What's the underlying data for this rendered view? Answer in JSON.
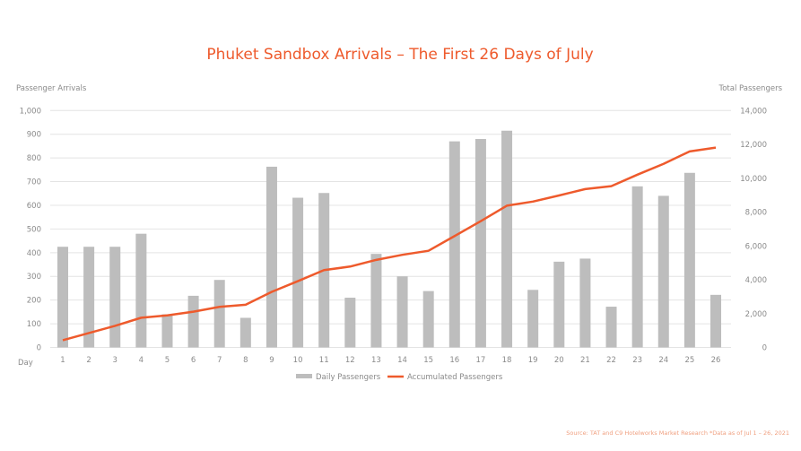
{
  "chart_data": {
    "type": "bar+line",
    "title": "Phuket Sandbox Arrivals – The First 26 Days of July",
    "ylabel_left": "Passenger Arrivals",
    "ylabel_right": "Total Passengers",
    "xlabel": "Day",
    "ylim_left": [
      0,
      1000
    ],
    "ylim_right": [
      0,
      14000
    ],
    "yticks_left": [
      "0",
      "100",
      "200",
      "300",
      "400",
      "500",
      "600",
      "700",
      "800",
      "900",
      "1,000"
    ],
    "yticks_right": [
      "0",
      "2,000",
      "4,000",
      "6,000",
      "8,000",
      "10,000",
      "12,000",
      "14,000"
    ],
    "grid": true,
    "legend_position": "bottom",
    "categories": [
      "1",
      "2",
      "3",
      "4",
      "5",
      "6",
      "7",
      "8",
      "9",
      "10",
      "11",
      "12",
      "13",
      "14",
      "15",
      "16",
      "17",
      "18",
      "19",
      "20",
      "21",
      "22",
      "23",
      "24",
      "25",
      "26"
    ],
    "series": [
      {
        "name": "Daily Passengers",
        "type": "bar",
        "axis": "left",
        "color": "#bdbdbd",
        "values": [
          425,
          425,
          425,
          480,
          140,
          218,
          285,
          125,
          763,
          632,
          652,
          210,
          395,
          300,
          238,
          870,
          880,
          915,
          243,
          362,
          375,
          172,
          680,
          640,
          737,
          222
        ]
      },
      {
        "name": "Accumulated Passengers",
        "type": "line",
        "axis": "right",
        "color": "#ee5a2c",
        "values": [
          425,
          850,
          1275,
          1755,
          1895,
          2113,
          2398,
          2523,
          3286,
          3918,
          4570,
          4780,
          5175,
          5475,
          5713,
          6583,
          7463,
          8378,
          8621,
          8983,
          9358,
          9530,
          10210,
          10850,
          11587,
          11809
        ]
      }
    ],
    "source": "Source: TAT and C9 Hotelworks Market Research *Data as of Jul 1 – 26, 2021"
  }
}
